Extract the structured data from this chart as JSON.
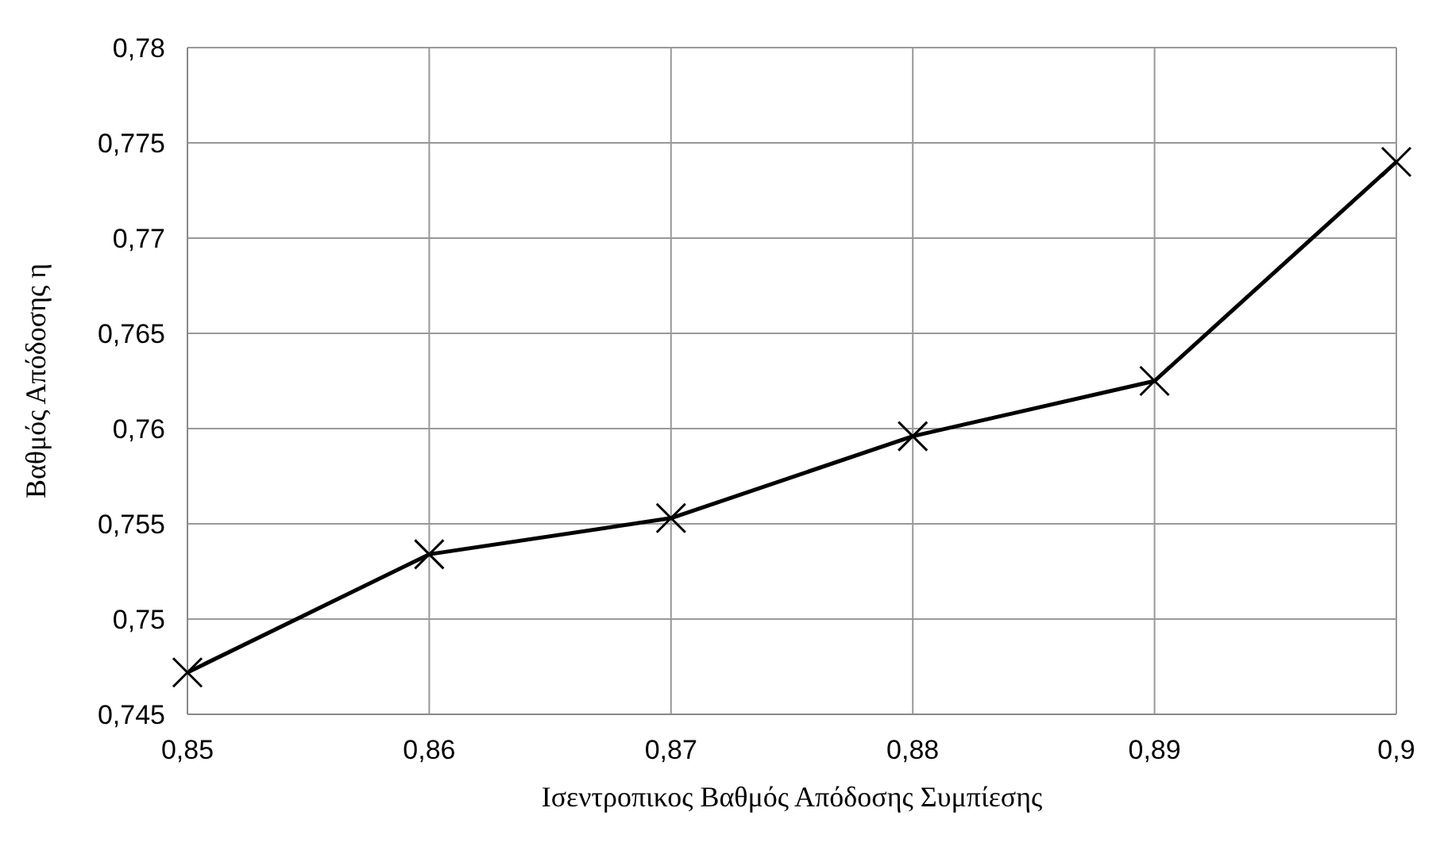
{
  "chart_data": {
    "type": "line",
    "xlabel": "Ισεντροπικος Βαθμός Απόδοσης Συμπίεσης",
    "ylabel": "Βαθμός Απόδοσης η",
    "x": [
      0.85,
      0.86,
      0.87,
      0.88,
      0.89,
      0.9
    ],
    "series": [
      {
        "color": "#000000",
        "values": [
          0.7472,
          0.7534,
          0.7553,
          0.7596,
          0.7625,
          0.774
        ]
      }
    ],
    "xlim": [
      0.85,
      0.9
    ],
    "xticks": [
      {
        "value": 0.85,
        "label": "0,85"
      },
      {
        "value": 0.86,
        "label": "0,86"
      },
      {
        "value": 0.87,
        "label": "0,87"
      },
      {
        "value": 0.88,
        "label": "0,88"
      },
      {
        "value": 0.89,
        "label": "0,89"
      },
      {
        "value": 0.9,
        "label": "0,9"
      }
    ],
    "ylim": [
      0.745,
      0.78
    ],
    "yticks": [
      {
        "value": 0.745,
        "label": "0,745"
      },
      {
        "value": 0.75,
        "label": "0,75"
      },
      {
        "value": 0.755,
        "label": "0,755"
      },
      {
        "value": 0.76,
        "label": "0,76"
      },
      {
        "value": 0.765,
        "label": "0,765"
      },
      {
        "value": 0.77,
        "label": "0,77"
      },
      {
        "value": 0.775,
        "label": "0,775"
      },
      {
        "value": 0.78,
        "label": "0,78"
      }
    ],
    "grid": true,
    "marker": "cross",
    "line_style": "solid"
  }
}
